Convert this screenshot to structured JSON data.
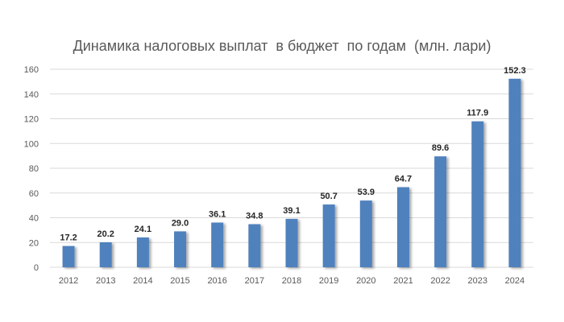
{
  "chart_data": {
    "type": "bar",
    "title": "Динамика налоговых выплат  в бюджет  по годам  (млн. лари)",
    "categories": [
      "2012",
      "2013",
      "2014",
      "2015",
      "2016",
      "2017",
      "2018",
      "2019",
      "2020",
      "2021",
      "2022",
      "2023",
      "2024"
    ],
    "values": [
      17.2,
      20.2,
      24.1,
      29.0,
      36.1,
      34.8,
      39.1,
      50.7,
      53.9,
      64.7,
      89.6,
      117.9,
      152.3
    ],
    "data_labels": [
      "17.2",
      "20.2",
      "24.1",
      "29.0",
      "36.1",
      "34.8",
      "39.1",
      "50.7",
      "53.9",
      "64.7",
      "89.6",
      "117.9",
      "152.3"
    ],
    "ylim": [
      0,
      160
    ],
    "yticks": [
      0,
      20,
      40,
      60,
      80,
      100,
      120,
      140,
      160
    ],
    "xlabel": "",
    "ylabel": "",
    "grid": true,
    "legend": "none",
    "colors": {
      "bar": "#4f81bd",
      "grid": "#d9d9d9",
      "axis_text": "#595959",
      "label_text": "#262626"
    }
  }
}
